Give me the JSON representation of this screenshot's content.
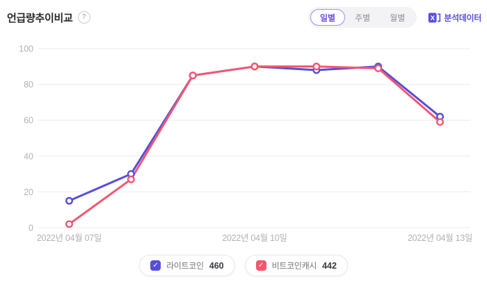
{
  "header": {
    "title": "언급량추이비교",
    "help_icon": "?",
    "period_tabs": [
      {
        "label": "일별",
        "selected": true
      },
      {
        "label": "주별",
        "selected": false
      },
      {
        "label": "월별",
        "selected": false
      }
    ],
    "export": {
      "label": "분석데이터",
      "icon": "excel-icon"
    }
  },
  "colors": {
    "series_purple": "#574FD8",
    "series_red": "#F4566F",
    "grid": "#ebebef",
    "axis_text": "#b1b1b9",
    "accent_purple": "#5a50dc"
  },
  "chart_data": {
    "type": "line",
    "x_point_count": 7,
    "x_tick_labels": [
      "2022년 04월 07일",
      "2022년 04월 10일",
      "2022년 04월 13일"
    ],
    "x_tick_indices": [
      0,
      3,
      6
    ],
    "series": [
      {
        "name": "라이트코인",
        "color": "#574FD8",
        "values": [
          15,
          30,
          85,
          90,
          88,
          90,
          62
        ]
      },
      {
        "name": "비트코인캐시",
        "color": "#F4566F",
        "values": [
          2,
          27,
          85,
          90,
          90,
          89,
          59
        ]
      }
    ],
    "ylim": [
      0,
      100
    ],
    "yticks": [
      0,
      20,
      40,
      60,
      80,
      100
    ],
    "grid": "horizontal",
    "legend_position": "bottom",
    "marker": "hollow-circle"
  },
  "legend": {
    "items": [
      {
        "label": "라이트코인",
        "count": "460",
        "color": "#574FD8",
        "checked": true
      },
      {
        "label": "비트코인캐시",
        "count": "442",
        "color": "#F4566F",
        "checked": true
      }
    ]
  }
}
